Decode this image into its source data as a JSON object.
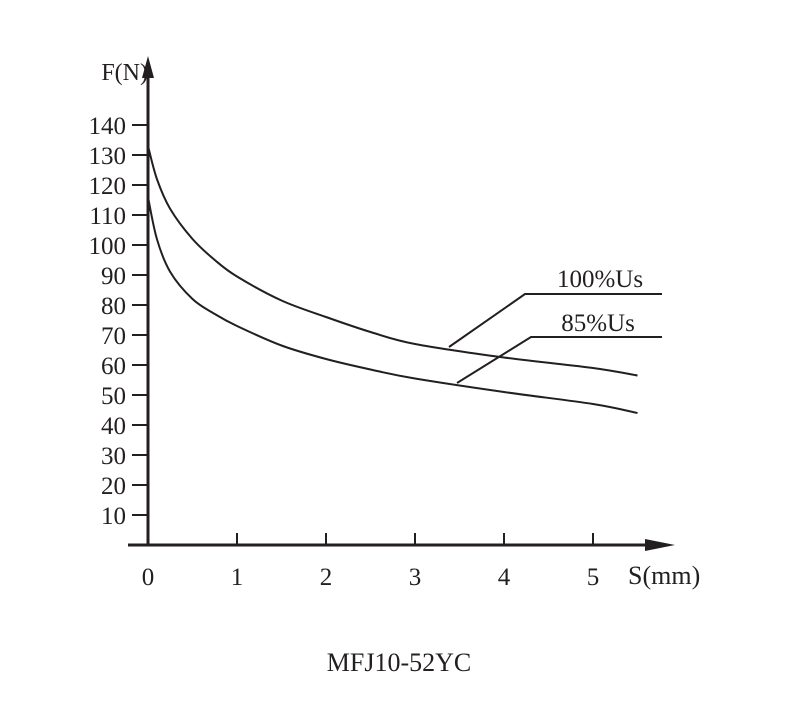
{
  "chart_data": {
    "type": "line",
    "title": "MFJ10-52YC",
    "xlabel": "S(mm)",
    "ylabel": "F(N)",
    "xlim": [
      0,
      5.5
    ],
    "ylim": [
      0,
      140
    ],
    "x_ticks": [
      "0",
      "1",
      "2",
      "3",
      "4",
      "5"
    ],
    "y_ticks": [
      "10",
      "20",
      "30",
      "40",
      "50",
      "60",
      "70",
      "80",
      "90",
      "100",
      "110",
      "120",
      "130",
      "140"
    ],
    "grid": false,
    "legend": "leader-line labels at right",
    "series": [
      {
        "name": "100%Us",
        "x": [
          0,
          0.1,
          0.25,
          0.5,
          0.75,
          1,
          1.5,
          2,
          2.5,
          3,
          4,
          5,
          5.5
        ],
        "y": [
          133,
          122,
          112,
          102,
          95,
          89.5,
          81.5,
          76,
          71,
          67,
          62.5,
          59,
          56.5
        ]
      },
      {
        "name": "85%Us",
        "x": [
          0,
          0.1,
          0.25,
          0.5,
          0.75,
          1,
          1.5,
          2,
          2.5,
          3,
          4,
          5,
          5.5
        ],
        "y": [
          116,
          102,
          91,
          82,
          77,
          73,
          66.5,
          62,
          58.5,
          55.5,
          51,
          47,
          44
        ]
      }
    ],
    "color": "#231f20"
  }
}
